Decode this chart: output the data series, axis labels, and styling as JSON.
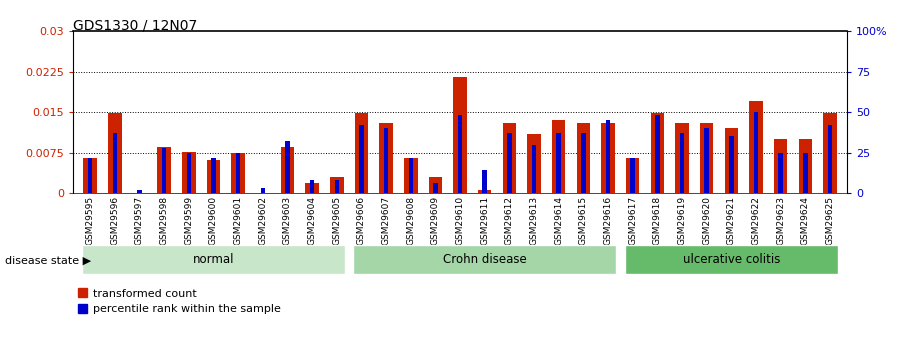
{
  "title": "GDS1330 / 12N07",
  "categories": [
    "GSM29595",
    "GSM29596",
    "GSM29597",
    "GSM29598",
    "GSM29599",
    "GSM29600",
    "GSM29601",
    "GSM29602",
    "GSM29603",
    "GSM29604",
    "GSM29605",
    "GSM29606",
    "GSM29607",
    "GSM29608",
    "GSM29609",
    "GSM29610",
    "GSM29611",
    "GSM29612",
    "GSM29613",
    "GSM29614",
    "GSM29615",
    "GSM29616",
    "GSM29617",
    "GSM29618",
    "GSM29619",
    "GSM29620",
    "GSM29621",
    "GSM29622",
    "GSM29623",
    "GSM29624",
    "GSM29625"
  ],
  "red_values": [
    0.0065,
    0.0148,
    0.0001,
    0.0085,
    0.0076,
    0.0062,
    0.0075,
    0.0001,
    0.0085,
    0.0018,
    0.003,
    0.0148,
    0.013,
    0.0065,
    0.003,
    0.0215,
    0.0005,
    0.013,
    0.011,
    0.0135,
    0.013,
    0.013,
    0.0065,
    0.0148,
    0.013,
    0.013,
    0.012,
    0.017,
    0.01,
    0.01,
    0.0148
  ],
  "blue_values_pct": [
    22,
    37,
    2,
    28,
    25,
    22,
    25,
    3,
    32,
    8,
    8,
    42,
    40,
    22,
    6,
    48,
    14,
    37,
    30,
    37,
    37,
    45,
    22,
    48,
    37,
    40,
    35,
    50,
    25,
    25,
    42
  ],
  "groups": [
    {
      "label": "normal",
      "start": 0,
      "end": 10,
      "color": "#c8e6c9"
    },
    {
      "label": "Crohn disease",
      "start": 11,
      "end": 21,
      "color": "#a5d6a7"
    },
    {
      "label": "ulcerative colitis",
      "start": 22,
      "end": 30,
      "color": "#66bb6a"
    }
  ],
  "ylim_left": [
    0,
    0.03
  ],
  "ylim_right": [
    0,
    100
  ],
  "yticks_left": [
    0,
    0.0075,
    0.015,
    0.0225,
    0.03
  ],
  "yticks_right": [
    0,
    25,
    50,
    75,
    100
  ],
  "ytick_labels_left": [
    "0",
    "0.0075",
    "0.015",
    "0.0225",
    "0.03"
  ],
  "ytick_labels_right": [
    "0",
    "25",
    "50",
    "75",
    "100%"
  ],
  "grid_values": [
    0.0075,
    0.015,
    0.0225
  ],
  "left_color": "#cc2200",
  "right_color": "#0000cc",
  "red_bar_width": 0.55,
  "blue_bar_width": 0.18,
  "legend_red": "transformed count",
  "legend_blue": "percentile rank within the sample",
  "disease_state_label": "disease state",
  "bg_color": "#ffffff",
  "ax_bg": "#ffffff",
  "xtick_bg": "#c8c8c8"
}
